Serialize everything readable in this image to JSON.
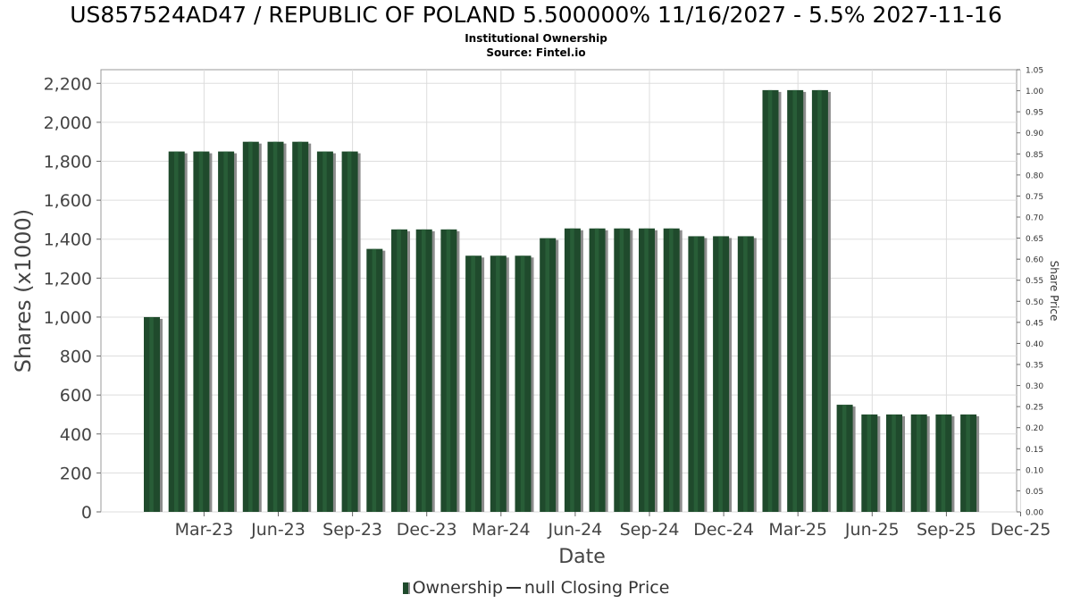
{
  "title": "US857524AD47 / REPUBLIC OF POLAND 5.500000% 11/16/2027 - 5.5% 2027-11-16",
  "subtitle": "Institutional Ownership",
  "source": "Source: Fintel.io",
  "legend": {
    "ownership": "Ownership",
    "price": "null Closing Price"
  },
  "colors": {
    "bar": "#1f4a2c",
    "bar_highlight": "#2f6a40",
    "bar_shadow": "#8c8c8c",
    "grid": "#dddddd"
  },
  "chart_data": {
    "type": "bar",
    "xlabel": "Date",
    "ylabel": "Shares (x1000)",
    "y2label": "Share Price",
    "ylim": [
      0,
      2270
    ],
    "y2lim": [
      0,
      1.05
    ],
    "yticks": [
      0,
      200,
      400,
      600,
      800,
      1000,
      1200,
      1400,
      1600,
      1800,
      2000,
      2200
    ],
    "ytick_labels": [
      "0",
      "200",
      "400",
      "600",
      "800",
      "1,000",
      "1,200",
      "1,400",
      "1,600",
      "1,800",
      "2,000",
      "2,200"
    ],
    "y2ticks": [
      0,
      0.05,
      0.1,
      0.15,
      0.2,
      0.25,
      0.3,
      0.35,
      0.4,
      0.45,
      0.5,
      0.55,
      0.6,
      0.65,
      0.7,
      0.75,
      0.8,
      0.85,
      0.9,
      0.95,
      1.0,
      1.05
    ],
    "y2tick_labels": [
      "0.00",
      "0.05",
      "0.10",
      "0.15",
      "0.20",
      "0.25",
      "0.30",
      "0.35",
      "0.40",
      "0.45",
      "0.50",
      "0.55",
      "0.60",
      "0.65",
      "0.70",
      "0.75",
      "0.80",
      "0.85",
      "0.90",
      "0.95",
      "1.00",
      "1.05"
    ],
    "xtick_labels": [
      "Mar-23",
      "Jun-23",
      "Sep-23",
      "Dec-23",
      "Mar-24",
      "Jun-24",
      "Sep-24",
      "Dec-24",
      "Mar-25",
      "Jun-25",
      "Sep-25",
      "Dec-25"
    ],
    "xtick_positions": [
      2,
      5,
      8,
      11,
      14,
      17,
      20,
      23,
      26,
      29,
      32,
      35
    ],
    "series": [
      {
        "name": "Ownership",
        "values": [
          1000,
          1850,
          1850,
          1850,
          1900,
          1900,
          1900,
          1850,
          1850,
          1350,
          1450,
          1450,
          1450,
          1315,
          1315,
          1315,
          1405,
          1455,
          1455,
          1455,
          1455,
          1455,
          1415,
          1415,
          1415,
          2165,
          2165,
          2165,
          550,
          500,
          500,
          500,
          500,
          500
        ]
      }
    ],
    "grid": true,
    "legend_position": "bottom"
  }
}
